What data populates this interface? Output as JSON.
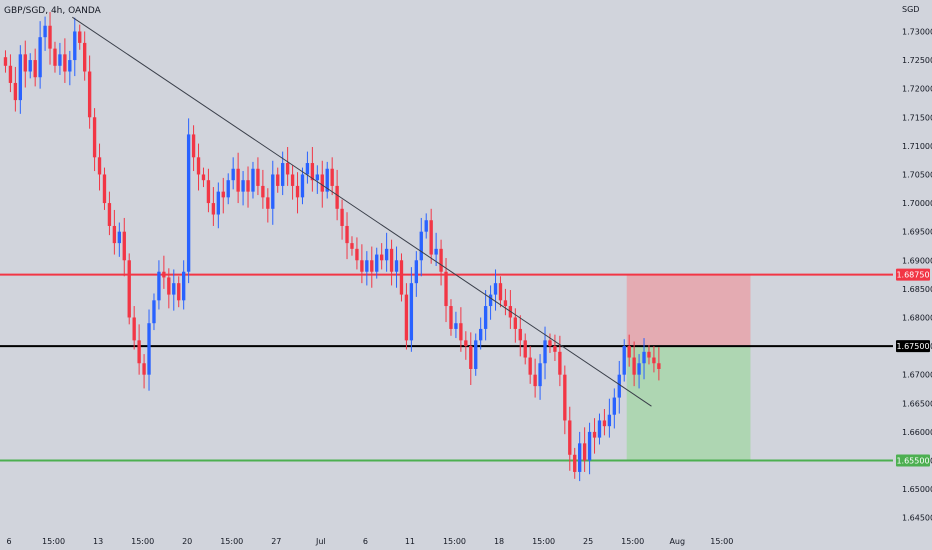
{
  "header": {
    "symbol_line": "GBP/SGD, 4h, OANDA",
    "currency": "SGD"
  },
  "colors": {
    "background": "#d1d4dc",
    "up_candle": "#2962ff",
    "down_candle": "#f23645",
    "resistance_line": "#f23645",
    "mid_line": "#000000",
    "support_line": "#4caf50",
    "stop_zone": "#e8a0a8",
    "target_zone": "#a5d6a7",
    "trendline": "#3a3f4a"
  },
  "chart_data": {
    "type": "candlestick",
    "title": "GBP/SGD, 4h, OANDA",
    "ylim": [
      1.6425,
      1.7355
    ],
    "y_ticks": [
      "1.73000",
      "1.72500",
      "1.72000",
      "1.71500",
      "1.71000",
      "1.70500",
      "1.70000",
      "1.69500",
      "1.69000",
      "1.68500",
      "1.68000",
      "1.67500",
      "1.67000",
      "1.66500",
      "1.66000",
      "1.65500",
      "1.65000",
      "1.64500"
    ],
    "y_tick_values": [
      1.73,
      1.725,
      1.72,
      1.715,
      1.71,
      1.705,
      1.7,
      1.695,
      1.69,
      1.685,
      1.68,
      1.675,
      1.67,
      1.665,
      1.66,
      1.655,
      1.65,
      1.645
    ],
    "x_ticks": [
      "6",
      "15:00",
      "13",
      "15:00",
      "20",
      "15:00",
      "27",
      "Jul",
      "6",
      "11",
      "15:00",
      "18",
      "15:00",
      "25",
      "15:00",
      "Aug",
      "15:00"
    ],
    "x_tick_index": [
      0,
      9,
      18,
      27,
      36,
      45,
      54,
      63,
      72,
      81,
      90,
      99,
      108,
      117,
      126,
      135,
      144
    ],
    "bars_per_label": 3,
    "levels": [
      {
        "name": "resistance",
        "value": 1.6875,
        "label": "1.68750"
      },
      {
        "name": "entry",
        "value": 1.675,
        "label": "1.67500"
      },
      {
        "name": "support",
        "value": 1.655,
        "label": "1.65500"
      }
    ],
    "trendline": {
      "from": {
        "bar": 14,
        "price": 1.7325
      },
      "to": {
        "bar": 131,
        "price": 1.6645
      }
    },
    "risk_reward_box": {
      "bar_start": 126,
      "bar_end": 151,
      "stop": 1.6875,
      "entry": 1.675,
      "target": 1.655
    },
    "close_series": [
      1.724,
      1.721,
      1.718,
      1.726,
      1.723,
      1.725,
      1.722,
      1.729,
      1.731,
      1.727,
      1.724,
      1.726,
      1.723,
      1.725,
      1.73,
      1.728,
      1.723,
      1.715,
      1.708,
      1.705,
      1.7,
      1.696,
      1.693,
      1.695,
      1.69,
      1.68,
      1.676,
      1.672,
      1.67,
      1.679,
      1.683,
      1.688,
      1.687,
      1.684,
      1.686,
      1.683,
      1.688,
      1.712,
      1.708,
      1.705,
      1.704,
      1.7,
      1.698,
      1.702,
      1.701,
      1.704,
      1.706,
      1.702,
      1.704,
      1.702,
      1.706,
      1.703,
      1.701,
      1.699,
      1.705,
      1.703,
      1.707,
      1.705,
      1.703,
      1.701,
      1.705,
      1.707,
      1.704,
      1.705,
      1.702,
      1.706,
      1.703,
      1.699,
      1.696,
      1.693,
      1.692,
      1.69,
      1.688,
      1.69,
      1.688,
      1.691,
      1.69,
      1.692,
      1.688,
      1.69,
      1.684,
      1.676,
      1.686,
      1.69,
      1.695,
      1.697,
      1.691,
      1.692,
      1.688,
      1.682,
      1.678,
      1.679,
      1.676,
      1.675,
      1.671,
      1.676,
      1.678,
      1.682,
      1.684,
      1.686,
      1.683,
      1.682,
      1.68,
      1.678,
      1.676,
      1.673,
      1.67,
      1.668,
      1.672,
      1.676,
      1.675,
      1.674,
      1.67,
      1.662,
      1.656,
      1.653,
      1.658,
      1.655,
      1.66,
      1.659,
      1.662,
      1.661,
      1.663,
      1.666,
      1.67,
      1.675,
      1.673,
      1.67,
      1.672,
      1.674,
      1.673,
      1.672,
      1.671
    ]
  }
}
